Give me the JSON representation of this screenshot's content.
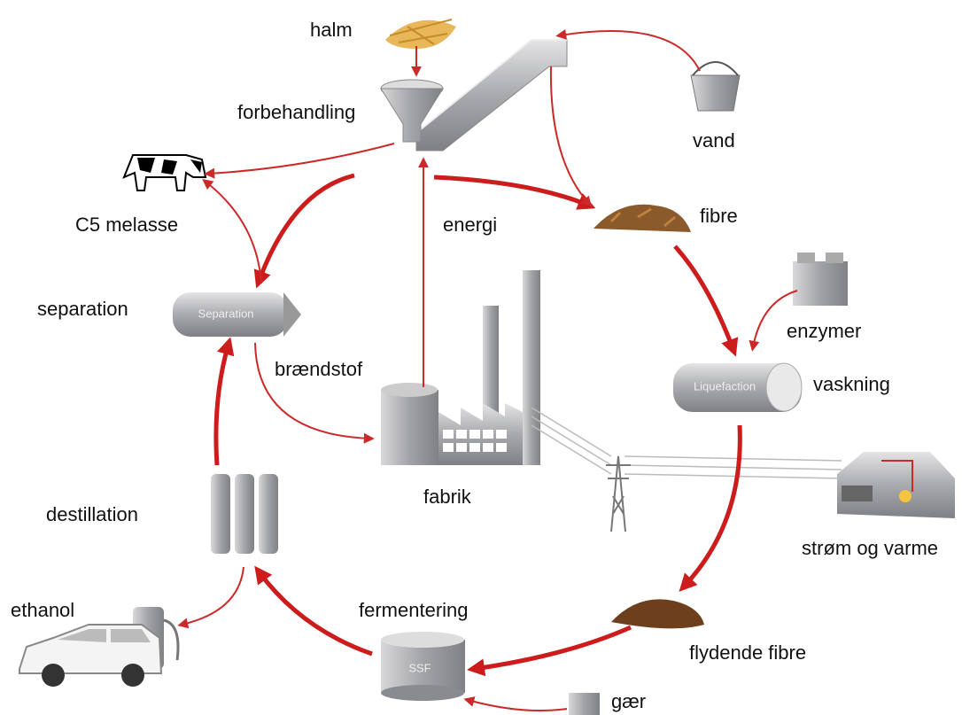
{
  "nodes": [
    {
      "label": "halm"
    },
    {
      "label": "forbehandling"
    },
    {
      "label": "vand"
    },
    {
      "label": "fibre"
    },
    {
      "label": "C5 melasse"
    },
    {
      "label": "energi"
    },
    {
      "label": "separation"
    },
    {
      "label": "Separation"
    },
    {
      "label": "brændstof"
    },
    {
      "label": "enzymer"
    },
    {
      "label": "Liquefaction"
    },
    {
      "label": "vaskning"
    },
    {
      "label": "destillation"
    },
    {
      "label": "fabrik"
    },
    {
      "label": "strøm og varme"
    },
    {
      "label": "ethanol"
    },
    {
      "label": "fermentering"
    },
    {
      "label": "SSF"
    },
    {
      "label": "flydende fibre"
    },
    {
      "label": "gær"
    }
  ]
}
